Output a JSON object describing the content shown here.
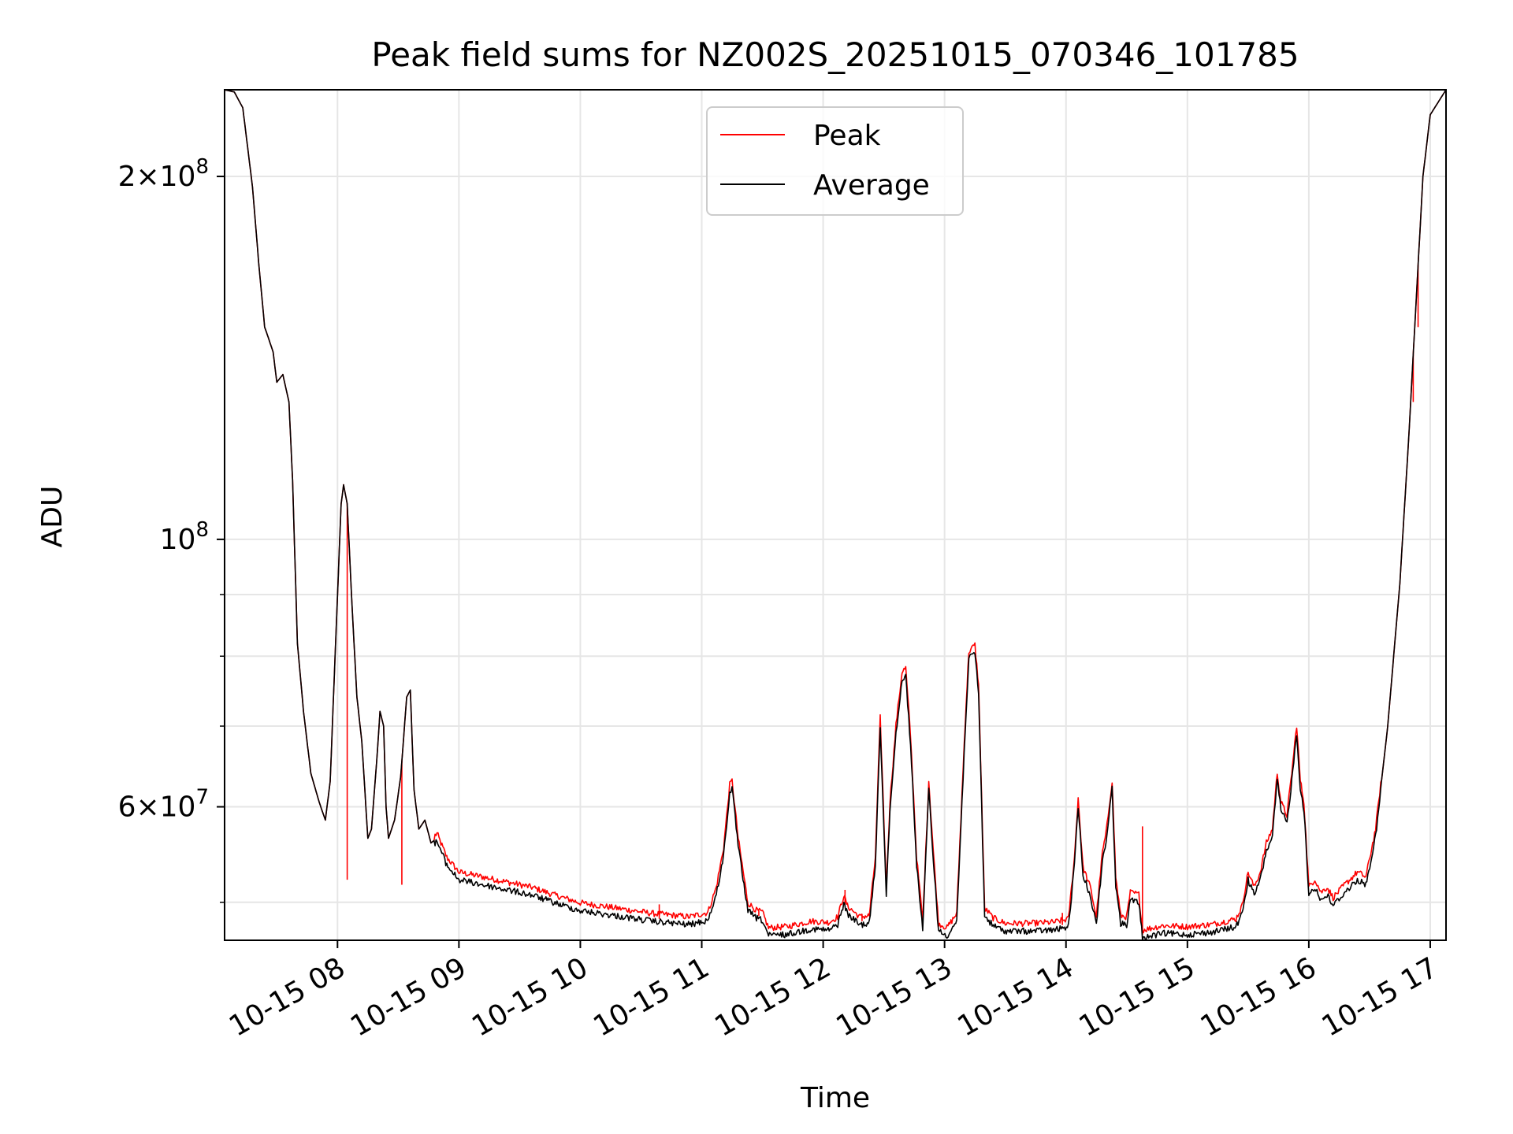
{
  "chart_data": {
    "type": "line",
    "title": "Peak field sums for NZ002S_20251015_070346_101785",
    "xlabel": "Time",
    "ylabel": "ADU",
    "yscale": "log",
    "ylim": [
      46500000,
      236000000
    ],
    "xlim_hours": [
      7.07,
      17.13
    ],
    "grid": true,
    "legend_position": "upper center",
    "x_ticks": [
      {
        "value": 8,
        "label": "10-15 08"
      },
      {
        "value": 9,
        "label": "10-15 09"
      },
      {
        "value": 10,
        "label": "10-15 10"
      },
      {
        "value": 11,
        "label": "10-15 11"
      },
      {
        "value": 12,
        "label": "10-15 12"
      },
      {
        "value": 13,
        "label": "10-15 13"
      },
      {
        "value": 14,
        "label": "10-15 14"
      },
      {
        "value": 15,
        "label": "10-15 15"
      },
      {
        "value": 16,
        "label": "10-15 16"
      },
      {
        "value": 17,
        "label": "10-15 17"
      }
    ],
    "y_major_ticks": [
      {
        "value": 60000000,
        "base": "6",
        "exp": "7"
      },
      {
        "value": 100000000,
        "base": "",
        "exp": "8"
      },
      {
        "value": 200000000,
        "base": "2",
        "exp": "8"
      }
    ],
    "y_minor_ticks": [
      50000000,
      70000000,
      80000000,
      90000000
    ],
    "series": [
      {
        "name": "Peak",
        "color": "#ff0000",
        "spikes": [
          {
            "t": 8.08,
            "v": 52200000
          },
          {
            "t": 8.53,
            "v": 51700000
          },
          {
            "t": 10.65,
            "v": 49800000
          },
          {
            "t": 11.47,
            "v": 49200000
          },
          {
            "t": 12.18,
            "v": 51200000
          },
          {
            "t": 12.32,
            "v": 48900000
          },
          {
            "t": 13.97,
            "v": 49000000
          },
          {
            "t": 14.63,
            "v": 57800000
          },
          {
            "t": 16.86,
            "v": 130000000
          },
          {
            "t": 16.9,
            "v": 150000000
          }
        ]
      },
      {
        "name": "Average",
        "color": "#000000",
        "points": [
          [
            7.07,
            236000000
          ],
          [
            7.15,
            235000000
          ],
          [
            7.22,
            228000000
          ],
          [
            7.3,
            196000000
          ],
          [
            7.35,
            170000000
          ],
          [
            7.4,
            150000000
          ],
          [
            7.43,
            147000000
          ],
          [
            7.47,
            143000000
          ],
          [
            7.5,
            135000000
          ],
          [
            7.55,
            137000000
          ],
          [
            7.6,
            130000000
          ],
          [
            7.63,
            112000000
          ],
          [
            7.67,
            82000000
          ],
          [
            7.72,
            72000000
          ],
          [
            7.78,
            64000000
          ],
          [
            7.85,
            60500000
          ],
          [
            7.9,
            58500000
          ],
          [
            7.94,
            63000000
          ],
          [
            7.98,
            80000000
          ],
          [
            8.03,
            107000000
          ],
          [
            8.05,
            111000000
          ],
          [
            8.08,
            107000000
          ],
          [
            8.12,
            88000000
          ],
          [
            8.16,
            74000000
          ],
          [
            8.2,
            68000000
          ],
          [
            8.25,
            56500000
          ],
          [
            8.28,
            57500000
          ],
          [
            8.33,
            67000000
          ],
          [
            8.35,
            72000000
          ],
          [
            8.38,
            70000000
          ],
          [
            8.4,
            60000000
          ],
          [
            8.42,
            56500000
          ],
          [
            8.47,
            58500000
          ],
          [
            8.52,
            63500000
          ],
          [
            8.57,
            74000000
          ],
          [
            8.6,
            75000000
          ],
          [
            8.63,
            62000000
          ],
          [
            8.67,
            57500000
          ],
          [
            8.72,
            58500000
          ],
          [
            8.77,
            56000000
          ],
          [
            8.82,
            56500000
          ],
          [
            8.9,
            54000000
          ],
          [
            9.0,
            52500000
          ],
          [
            9.2,
            52000000
          ],
          [
            9.4,
            51500000
          ],
          [
            9.6,
            51000000
          ],
          [
            9.8,
            50200000
          ],
          [
            10.0,
            49500000
          ],
          [
            10.3,
            49000000
          ],
          [
            10.6,
            48500000
          ],
          [
            10.9,
            48200000
          ],
          [
            11.05,
            48600000
          ],
          [
            11.12,
            51000000
          ],
          [
            11.18,
            55000000
          ],
          [
            11.23,
            62000000
          ],
          [
            11.25,
            62500000
          ],
          [
            11.3,
            56000000
          ],
          [
            11.38,
            49500000
          ],
          [
            11.45,
            48800000
          ],
          [
            11.5,
            48600000
          ],
          [
            11.55,
            47200000
          ],
          [
            11.7,
            47300000
          ],
          [
            11.9,
            47800000
          ],
          [
            12.05,
            47700000
          ],
          [
            12.12,
            48200000
          ],
          [
            12.17,
            50200000
          ],
          [
            12.2,
            49200000
          ],
          [
            12.3,
            48200000
          ],
          [
            12.38,
            48300000
          ],
          [
            12.43,
            54000000
          ],
          [
            12.47,
            70500000
          ],
          [
            12.52,
            51000000
          ],
          [
            12.55,
            60000000
          ],
          [
            12.6,
            69500000
          ],
          [
            12.65,
            77000000
          ],
          [
            12.68,
            77500000
          ],
          [
            12.72,
            68000000
          ],
          [
            12.77,
            54000000
          ],
          [
            12.82,
            47800000
          ],
          [
            12.87,
            62500000
          ],
          [
            12.9,
            56000000
          ],
          [
            12.95,
            47600000
          ],
          [
            13.02,
            47200000
          ],
          [
            13.1,
            48500000
          ],
          [
            13.17,
            70000000
          ],
          [
            13.2,
            80000000
          ],
          [
            13.25,
            81000000
          ],
          [
            13.28,
            75000000
          ],
          [
            13.33,
            49000000
          ],
          [
            13.4,
            48100000
          ],
          [
            13.5,
            47600000
          ],
          [
            13.7,
            47600000
          ],
          [
            13.9,
            47700000
          ],
          [
            14.02,
            48000000
          ],
          [
            14.07,
            54000000
          ],
          [
            14.1,
            60500000
          ],
          [
            14.14,
            53000000
          ],
          [
            14.2,
            51000000
          ],
          [
            14.25,
            48200000
          ],
          [
            14.3,
            54500000
          ],
          [
            14.33,
            56500000
          ],
          [
            14.38,
            62500000
          ],
          [
            14.41,
            52000000
          ],
          [
            14.45,
            48300000
          ],
          [
            14.5,
            48200000
          ],
          [
            14.53,
            50500000
          ],
          [
            14.6,
            50300000
          ],
          [
            14.63,
            47000000
          ],
          [
            14.8,
            47400000
          ],
          [
            15.0,
            47300000
          ],
          [
            15.2,
            47500000
          ],
          [
            15.4,
            48000000
          ],
          [
            15.45,
            49200000
          ],
          [
            15.5,
            52500000
          ],
          [
            15.55,
            51000000
          ],
          [
            15.6,
            52500000
          ],
          [
            15.65,
            55500000
          ],
          [
            15.7,
            57000000
          ],
          [
            15.74,
            63500000
          ],
          [
            15.77,
            60000000
          ],
          [
            15.82,
            58500000
          ],
          [
            15.86,
            63500000
          ],
          [
            15.9,
            69500000
          ],
          [
            15.93,
            62500000
          ],
          [
            15.96,
            60000000
          ],
          [
            16.0,
            51000000
          ],
          [
            16.05,
            51800000
          ],
          [
            16.1,
            50500000
          ],
          [
            16.15,
            51000000
          ],
          [
            16.2,
            50000000
          ],
          [
            16.3,
            51300000
          ],
          [
            16.4,
            52500000
          ],
          [
            16.47,
            52000000
          ],
          [
            16.55,
            57000000
          ],
          [
            16.65,
            70000000
          ],
          [
            16.75,
            92000000
          ],
          [
            16.82,
            120000000
          ],
          [
            16.88,
            155000000
          ],
          [
            16.94,
            200000000
          ],
          [
            17.0,
            225000000
          ],
          [
            17.13,
            236000000
          ]
        ]
      }
    ]
  }
}
